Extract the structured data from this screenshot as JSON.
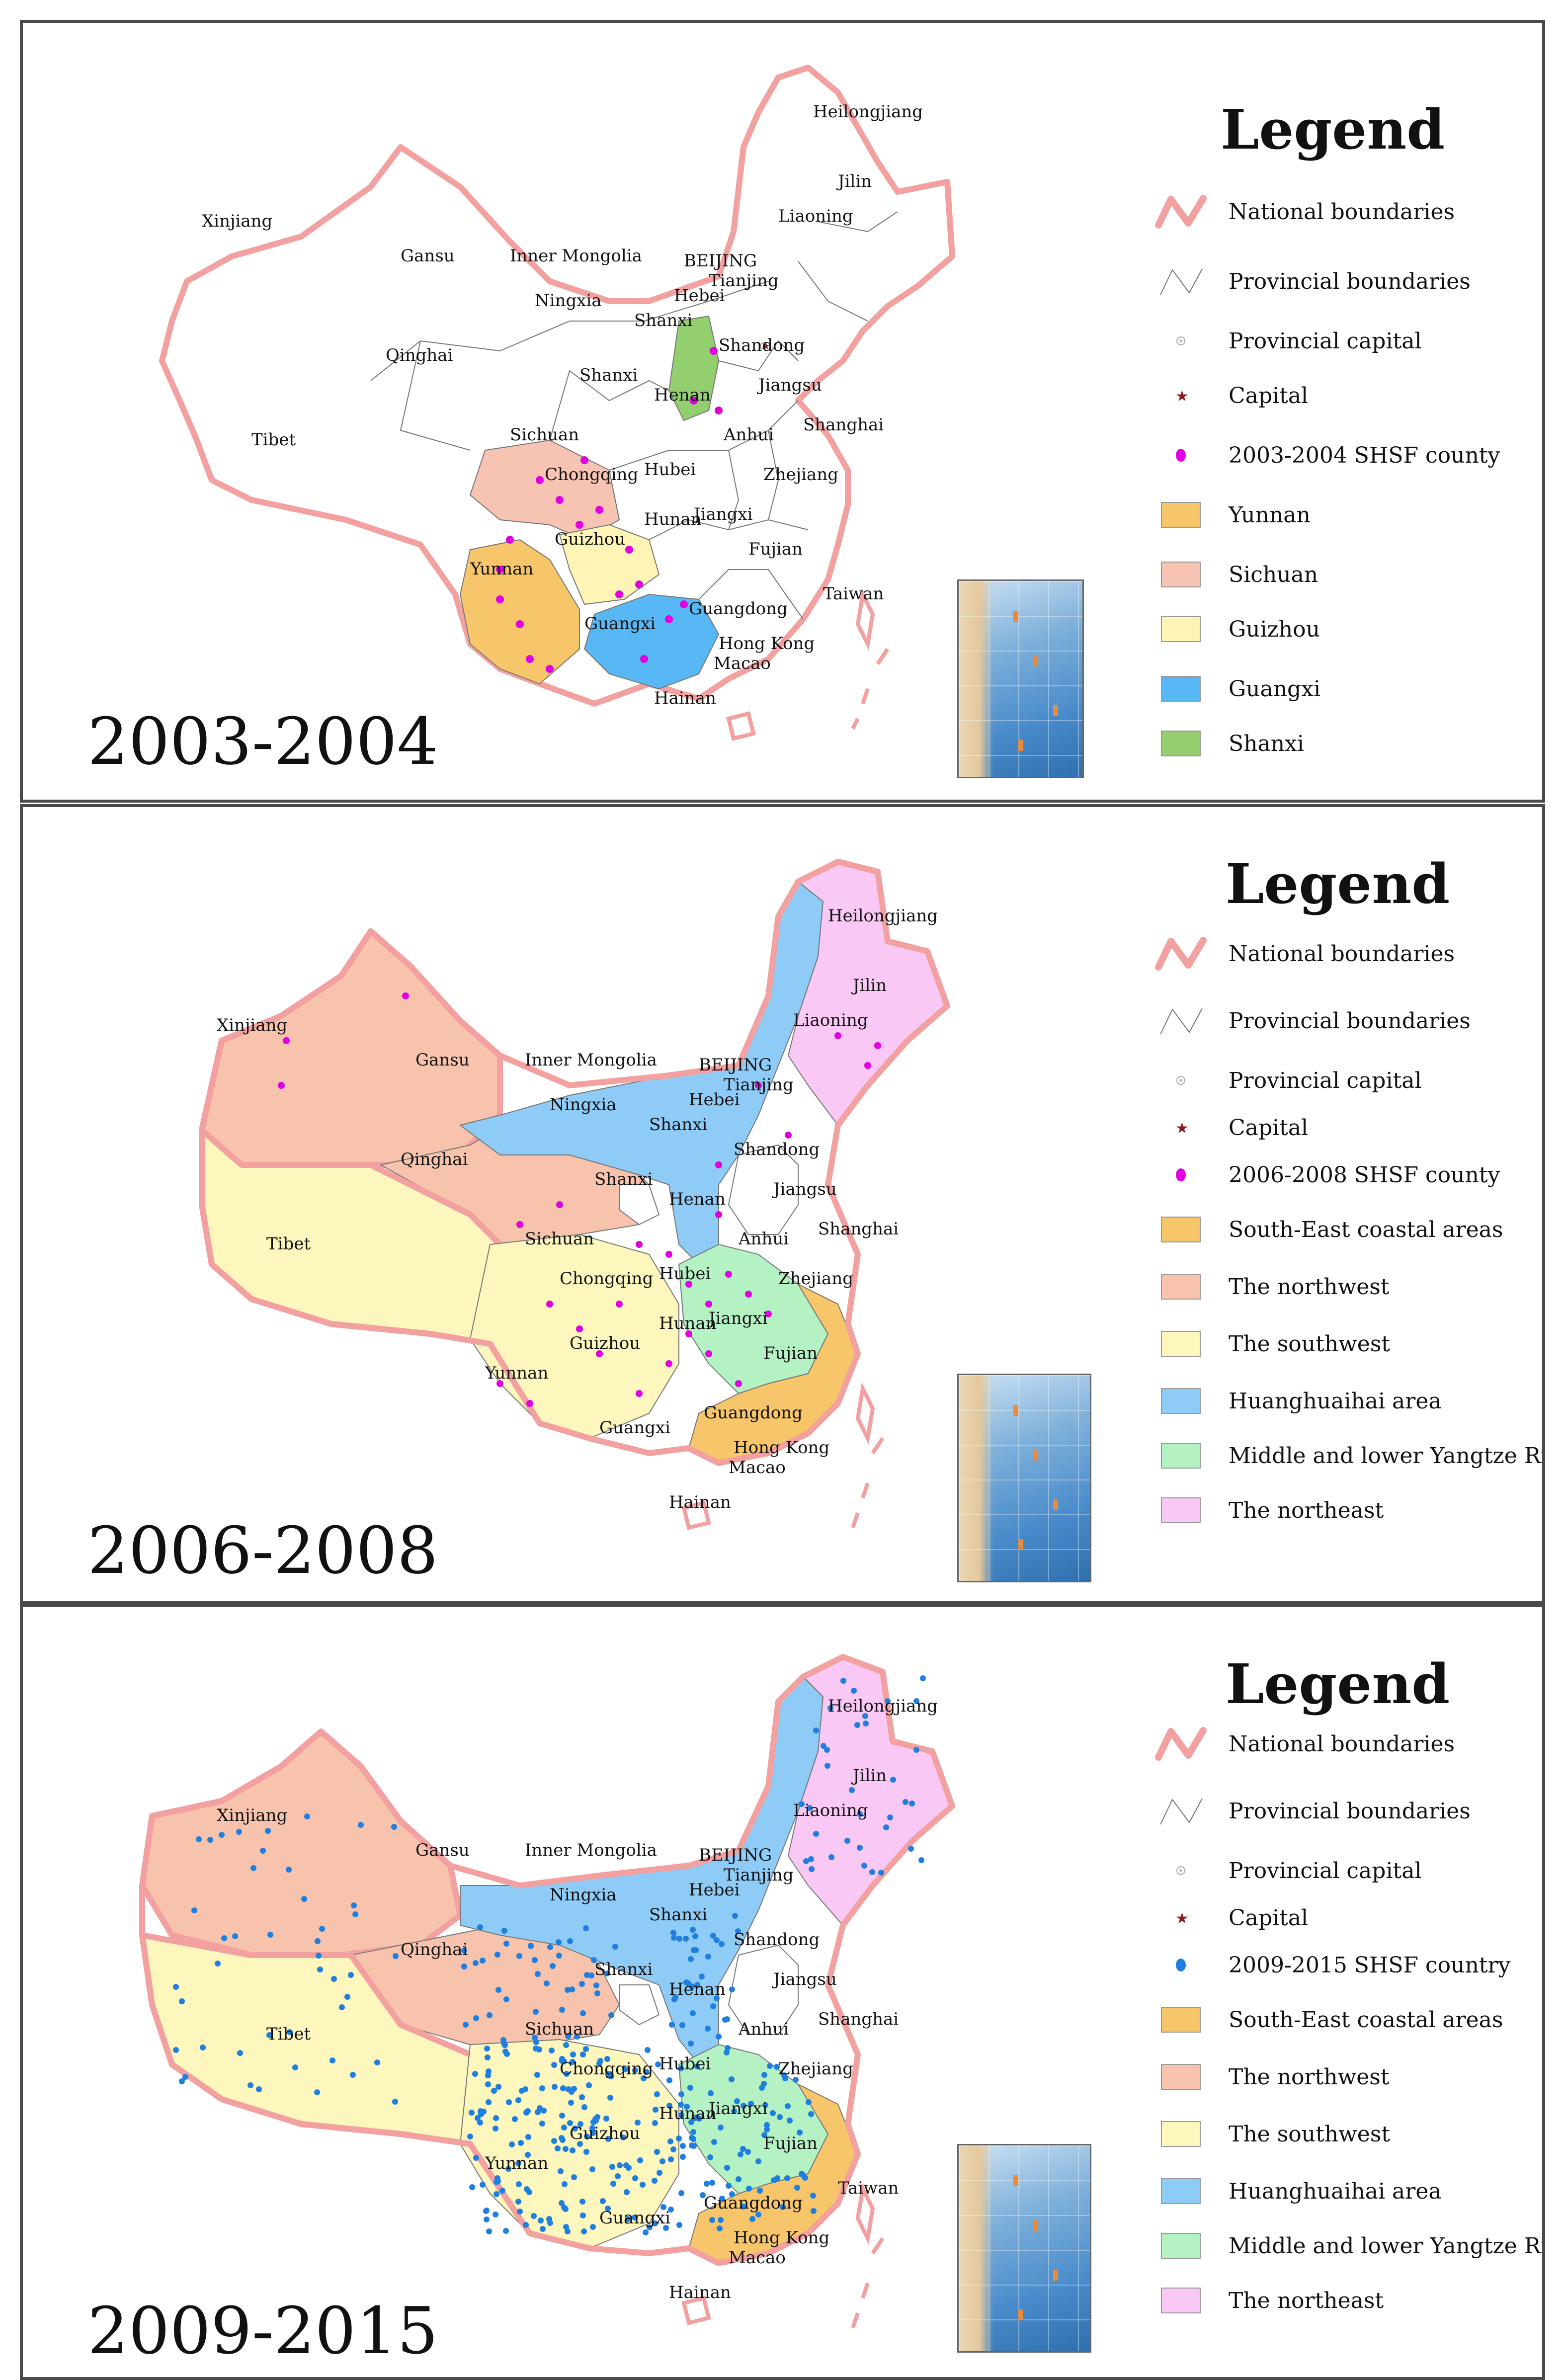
{
  "panels": [
    {
      "id": "p1",
      "period": "2003-2004",
      "legend_title": "Legend",
      "legend": [
        {
          "symbol": "national-boundary",
          "label": "National boundaries"
        },
        {
          "symbol": "provincial-boundary",
          "label": "Provincial boundaries"
        },
        {
          "symbol": "provincial-capital",
          "label": "Provincial capital"
        },
        {
          "symbol": "capital-star",
          "label": "Capital"
        },
        {
          "symbol": "dot",
          "color": "#e000e0",
          "label": "2003-2004 SHSF county"
        },
        {
          "symbol": "swatch",
          "color": "#f8c66a",
          "label": "Yunnan"
        },
        {
          "symbol": "swatch",
          "color": "#f7c3b3",
          "label": "Sichuan"
        },
        {
          "symbol": "swatch",
          "color": "#fdf4b6",
          "label": "Guizhou"
        },
        {
          "symbol": "swatch",
          "color": "#58b8f5",
          "label": "Guangxi"
        },
        {
          "symbol": "swatch",
          "color": "#93cf6e",
          "label": "Shanxi"
        }
      ],
      "labels": [
        "Heilongjiang",
        "Jilin",
        "Liaoning",
        "Xinjiang",
        "Gansu",
        "Inner Mongolia",
        "BEIJING",
        "Tianjing",
        "Hebei",
        "Ningxia",
        "Shanxi",
        "Qinghai",
        "Shandong",
        "Shanxi",
        "Henan",
        "Jiangsu",
        "Tibet",
        "Sichuan",
        "Anhui",
        "Shanghai",
        "Hubei",
        "Chongqing",
        "Zhejiang",
        "Hunan",
        "Jiangxi",
        "Guizhou",
        "Fujian",
        "Yunnan",
        "Taiwan",
        "Guangdong",
        "Guangxi",
        "Hong Kong",
        "Macao",
        "Hainan"
      ]
    },
    {
      "id": "p2",
      "period": "2006-2008",
      "legend_title": "Legend",
      "legend": [
        {
          "symbol": "national-boundary",
          "label": "National boundaries"
        },
        {
          "symbol": "provincial-boundary",
          "label": "Provincial boundaries"
        },
        {
          "symbol": "provincial-capital",
          "label": "Provincial capital"
        },
        {
          "symbol": "capital-star",
          "label": "Capital"
        },
        {
          "symbol": "dot",
          "color": "#e000e0",
          "label": "2006-2008 SHSF county"
        },
        {
          "symbol": "swatch",
          "color": "#f8c66a",
          "label": "South-East coastal areas"
        },
        {
          "symbol": "swatch",
          "color": "#f7c3ad",
          "label": "The northwest"
        },
        {
          "symbol": "swatch",
          "color": "#fdf6bd",
          "label": "The southwest"
        },
        {
          "symbol": "swatch",
          "color": "#8ecbf6",
          "label": "Huanghuaihai area"
        },
        {
          "symbol": "swatch",
          "color": "#b5f2c3",
          "label": "Middle and lower Yangtze River"
        },
        {
          "symbol": "swatch",
          "color": "#f9c8f5",
          "label": "The northeast"
        }
      ],
      "labels": [
        "Heilongjiang",
        "Jilin",
        "Liaoning",
        "Xinjiang",
        "Gansu",
        "Inner Mongolia",
        "BEIJING",
        "Tianjing",
        "Hebei",
        "Ningxia",
        "Shanxi",
        "Qinghai",
        "Shandong",
        "Shanxi",
        "Henan",
        "Jiangsu",
        "Tibet",
        "Anhui",
        "Shanghai",
        "Sichuan",
        "Chongqing",
        "Hubei",
        "Zhejiang",
        "Jiangxi",
        "Hunan",
        "Guizhou",
        "Fujian",
        "Yunnan",
        "Guangxi",
        "Guangdong",
        "Hong Kong",
        "Macao",
        "Hainan"
      ]
    },
    {
      "id": "p3",
      "period": "2009-2015",
      "legend_title": "Legend",
      "legend": [
        {
          "symbol": "national-boundary",
          "label": "National boundaries"
        },
        {
          "symbol": "provincial-boundary",
          "label": "Provincial boundaries"
        },
        {
          "symbol": "provincial-capital",
          "label": "Provincial capital"
        },
        {
          "symbol": "capital-star",
          "label": "Capital"
        },
        {
          "symbol": "dot",
          "color": "#1f7fe0",
          "label": "2009-2015 SHSF country"
        },
        {
          "symbol": "swatch",
          "color": "#f8c66a",
          "label": "South-East coastal areas"
        },
        {
          "symbol": "swatch",
          "color": "#f7c3ad",
          "label": "The northwest"
        },
        {
          "symbol": "swatch",
          "color": "#fdf6bd",
          "label": "The southwest"
        },
        {
          "symbol": "swatch",
          "color": "#8ecbf6",
          "label": "Huanghuaihai area"
        },
        {
          "symbol": "swatch",
          "color": "#b5f2c3",
          "label": "Middle and lower Yangtze River"
        },
        {
          "symbol": "swatch",
          "color": "#f9c8f5",
          "label": "The northeast"
        }
      ],
      "labels": [
        "Heilongjiang",
        "Jilin",
        "Liaoning",
        "Xinjiang",
        "Gansu",
        "Inner Mongolia",
        "BEIJING",
        "Tianjing",
        "Hebei",
        "Ningxia",
        "Shanxi",
        "Qinghai",
        "Shandong",
        "Shanxi",
        "Henan",
        "Jiangsu",
        "Tibet",
        "Anhui",
        "Shanghai",
        "Sichuan",
        "Hubei",
        "Chongqing",
        "Zhejiang",
        "Hunan",
        "Jiangxi",
        "Guizhou",
        "Fujian",
        "Yunnan",
        "Taiwan",
        "Guangxi",
        "Guangdong",
        "Hong Kong",
        "Macao",
        "Hainan"
      ]
    }
  ],
  "colors": {
    "national_boundary": "#f2a0a0",
    "provincial_boundary": "#777777",
    "panel_border": "#4a4a4a"
  }
}
